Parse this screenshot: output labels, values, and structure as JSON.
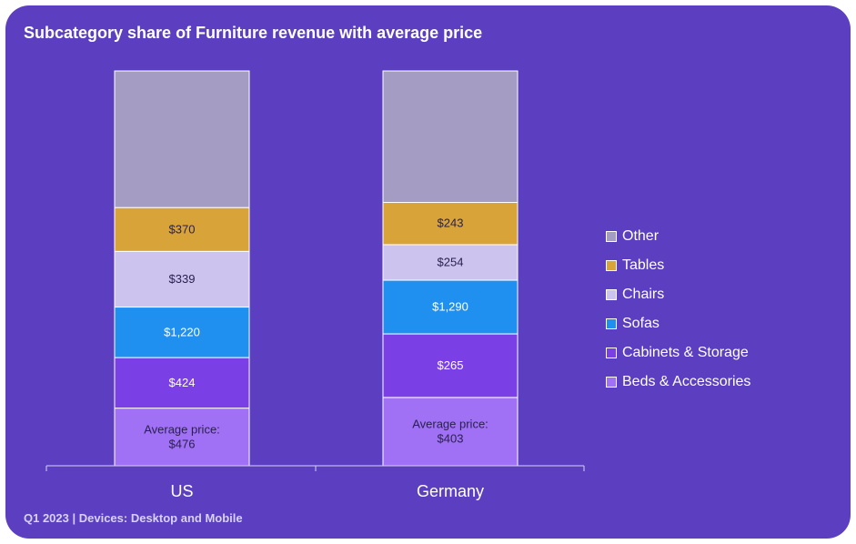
{
  "chart_data": {
    "type": "bar",
    "stacked": true,
    "normalized": true,
    "title": "Subcategory share of Furniture revenue with average price",
    "subtitle": "Q1 2023 | Devices: Desktop and Mobile",
    "categories": [
      "US",
      "Germany"
    ],
    "series": [
      {
        "name": "Beds & Accessories",
        "color": "#a070f5",
        "share": [
          14.6,
          17.3
        ],
        "avg_price_label": [
          "Average price:\n$476",
          "Average price:\n$403"
        ]
      },
      {
        "name": "Cabinets & Storage",
        "color": "#7b3fe6",
        "share": [
          12.8,
          16.1
        ],
        "avg_price_label": [
          "$424",
          "$265"
        ]
      },
      {
        "name": "Sofas",
        "color": "#1f8ff0",
        "share": [
          12.8,
          13.6
        ],
        "avg_price_label": [
          "$1,220",
          "$1,290"
        ]
      },
      {
        "name": "Chairs",
        "color": "#cdc3ef",
        "share": [
          14.1,
          9.0
        ],
        "avg_price_label": [
          "$339",
          "$254"
        ]
      },
      {
        "name": "Tables",
        "color": "#d8a43a",
        "share": [
          11.1,
          10.7
        ],
        "avg_price_label": [
          "$370",
          "$243"
        ]
      },
      {
        "name": "Other",
        "color": "#a59cc3",
        "share": [
          34.6,
          33.3
        ],
        "avg_price_label": [
          "",
          ""
        ]
      }
    ],
    "legend_order": [
      "Other",
      "Tables",
      "Chairs",
      "Sofas",
      "Cabinets & Storage",
      "Beds & Accessories"
    ],
    "legend_position": "right",
    "ylim": [
      0,
      100
    ],
    "grid": false
  }
}
